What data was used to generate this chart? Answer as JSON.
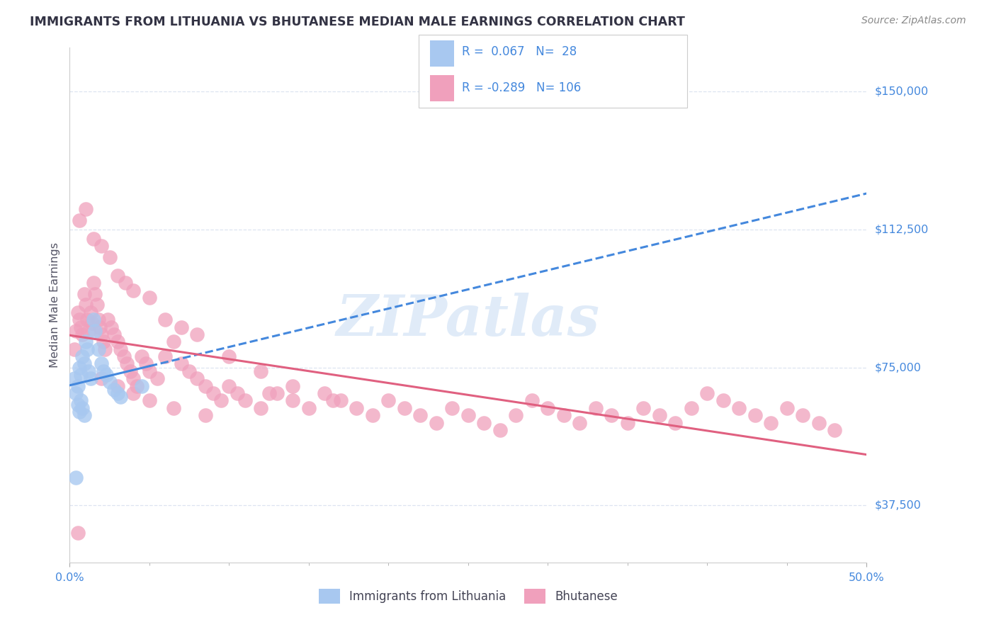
{
  "title": "IMMIGRANTS FROM LITHUANIA VS BHUTANESE MEDIAN MALE EARNINGS CORRELATION CHART",
  "source": "Source: ZipAtlas.com",
  "ylabel": "Median Male Earnings",
  "yticks": [
    37500,
    75000,
    112500,
    150000
  ],
  "ytick_labels": [
    "$37,500",
    "$75,000",
    "$112,500",
    "$150,000"
  ],
  "xlim": [
    0.0,
    50.0
  ],
  "ylim": [
    22000,
    162000
  ],
  "watermark": "ZIPatlas",
  "blue_color": "#a8c8f0",
  "pink_color": "#f0a0bc",
  "trend_blue_color": "#4488dd",
  "trend_pink_color": "#e06080",
  "label_color": "#4488dd",
  "text_color": "#555566",
  "grid_color": "#dde4f0",
  "background": "#ffffff",
  "lith_x": [
    0.3,
    0.4,
    0.5,
    0.6,
    0.7,
    0.8,
    0.9,
    1.0,
    1.1,
    1.2,
    1.3,
    1.5,
    1.6,
    1.8,
    2.0,
    2.1,
    2.3,
    2.5,
    2.8,
    3.0,
    3.2,
    0.5,
    0.6,
    0.7,
    0.8,
    0.9,
    4.5,
    0.4
  ],
  "lith_y": [
    72000,
    68000,
    70000,
    75000,
    73000,
    78000,
    76000,
    82000,
    80000,
    74000,
    72000,
    88000,
    85000,
    80000,
    76000,
    74000,
    73000,
    71000,
    69000,
    68000,
    67000,
    65000,
    63000,
    66000,
    64000,
    62000,
    70000,
    45000
  ],
  "bhu_x": [
    0.3,
    0.4,
    0.5,
    0.6,
    0.7,
    0.8,
    0.9,
    1.0,
    1.1,
    1.2,
    1.3,
    1.4,
    1.5,
    1.6,
    1.7,
    1.8,
    1.9,
    2.0,
    2.1,
    2.2,
    2.4,
    2.6,
    2.8,
    3.0,
    3.2,
    3.4,
    3.6,
    3.8,
    4.0,
    4.2,
    4.5,
    4.8,
    5.0,
    5.5,
    6.0,
    6.5,
    7.0,
    7.5,
    8.0,
    8.5,
    9.0,
    9.5,
    10.0,
    10.5,
    11.0,
    12.0,
    13.0,
    14.0,
    15.0,
    16.0,
    17.0,
    18.0,
    19.0,
    20.0,
    21.0,
    22.0,
    23.0,
    24.0,
    25.0,
    26.0,
    27.0,
    28.0,
    29.0,
    30.0,
    31.0,
    32.0,
    33.0,
    34.0,
    35.0,
    36.0,
    37.0,
    38.0,
    39.0,
    40.0,
    41.0,
    42.0,
    43.0,
    44.0,
    45.0,
    46.0,
    47.0,
    48.0,
    1.0,
    1.5,
    2.0,
    2.5,
    3.0,
    3.5,
    4.0,
    5.0,
    6.0,
    7.0,
    8.0,
    10.0,
    12.0,
    14.0,
    2.0,
    3.0,
    4.0,
    5.0,
    6.5,
    8.5,
    12.5,
    16.5,
    0.5,
    0.6
  ],
  "bhu_y": [
    80000,
    85000,
    90000,
    88000,
    86000,
    84000,
    95000,
    92000,
    88000,
    85000,
    90000,
    87000,
    98000,
    95000,
    92000,
    88000,
    86000,
    84000,
    82000,
    80000,
    88000,
    86000,
    84000,
    82000,
    80000,
    78000,
    76000,
    74000,
    72000,
    70000,
    78000,
    76000,
    74000,
    72000,
    78000,
    82000,
    76000,
    74000,
    72000,
    70000,
    68000,
    66000,
    70000,
    68000,
    66000,
    64000,
    68000,
    66000,
    64000,
    68000,
    66000,
    64000,
    62000,
    66000,
    64000,
    62000,
    60000,
    64000,
    62000,
    60000,
    58000,
    62000,
    66000,
    64000,
    62000,
    60000,
    64000,
    62000,
    60000,
    64000,
    62000,
    60000,
    64000,
    68000,
    66000,
    64000,
    62000,
    60000,
    64000,
    62000,
    60000,
    58000,
    118000,
    110000,
    108000,
    105000,
    100000,
    98000,
    96000,
    94000,
    88000,
    86000,
    84000,
    78000,
    74000,
    70000,
    72000,
    70000,
    68000,
    66000,
    64000,
    62000,
    68000,
    66000,
    30000,
    115000
  ]
}
